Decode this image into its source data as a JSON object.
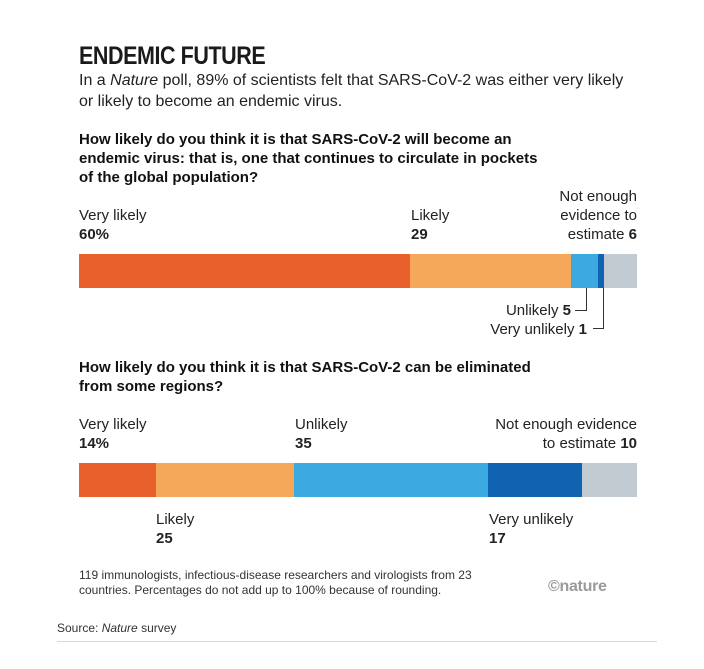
{
  "header": {
    "title": "ENDEMIC FUTURE",
    "subtitle_pre": "In a ",
    "subtitle_em": "Nature",
    "subtitle_post": " poll, 89% of scientists felt that SARS-CoV-2 was either very likely or likely to become an endemic virus."
  },
  "colors": {
    "very_likely": "#e8602c",
    "likely": "#f5a85a",
    "unlikely": "#3da9e1",
    "very_unlikely": "#1063b0",
    "not_enough": "#c3cbd2"
  },
  "chart_data": [
    {
      "type": "bar",
      "orientation": "horizontal-stacked",
      "title": "How likely do you think it is that SARS-CoV-2 will become an endemic virus: that is, one that continues to circulate in pockets of the global population?",
      "categories": [
        "Very likely",
        "Likely",
        "Unlikely",
        "Very unlikely",
        "Not enough evidence to estimate"
      ],
      "values": [
        60,
        29,
        5,
        1,
        6
      ],
      "units": "%",
      "labels": {
        "very_likely_name": "Very likely",
        "very_likely_value": "60%",
        "likely_name": "Likely",
        "likely_value": "29",
        "not_enough_line1": "Not enough",
        "not_enough_line2": "evidence to",
        "not_enough_line3": "estimate",
        "not_enough_value": "6",
        "unlikely_name": "Unlikely",
        "unlikely_value": "5",
        "very_unlikely_name": "Very unlikely",
        "very_unlikely_value": "1"
      }
    },
    {
      "type": "bar",
      "orientation": "horizontal-stacked",
      "title": "How likely do you think it is that SARS-CoV-2 can be eliminated from some regions?",
      "categories": [
        "Very likely",
        "Likely",
        "Unlikely",
        "Very unlikely",
        "Not enough evidence to estimate"
      ],
      "values": [
        14,
        25,
        35,
        17,
        10
      ],
      "units": "%",
      "labels": {
        "very_likely_name": "Very likely",
        "very_likely_value": "14%",
        "unlikely_name": "Unlikely",
        "unlikely_value": "35",
        "not_enough_line1": "Not enough evidence",
        "not_enough_line2": "to estimate",
        "not_enough_value": "10",
        "likely_name": "Likely",
        "likely_value": "25",
        "very_unlikely_name": "Very unlikely",
        "very_unlikely_value": "17"
      }
    }
  ],
  "footer": {
    "note": "119 immunologists, infectious-disease researchers and virologists from 23 countries. Percentages do not add up to 100% because of rounding.",
    "logo": "©nature",
    "source_pre": "Source: ",
    "source_em": "Nature",
    "source_post": " survey"
  }
}
